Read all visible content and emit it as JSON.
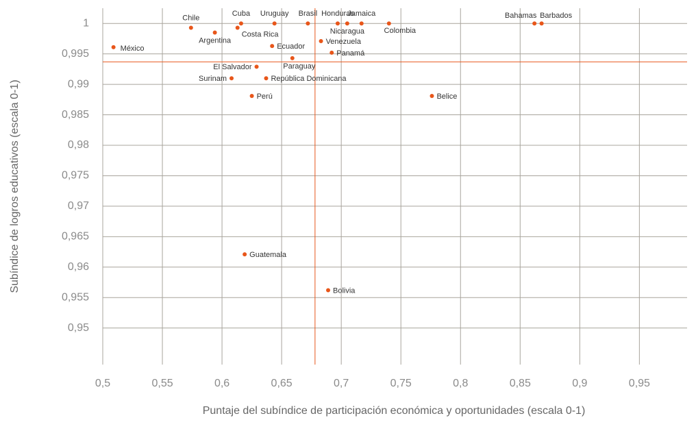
{
  "chart_data": {
    "type": "scatter",
    "x_label": "Puntaje del subíndice de participación económica y oportunidades (escala 0-1)",
    "y_label": "Subíndice de logros educativos (escala 0-1)",
    "labels": [
      "Chile",
      "Cuba",
      "Argentina",
      "Costa Rica",
      "México",
      "Uruguay",
      "Brasil",
      "Honduras",
      "Nicaragua",
      "Jamaica",
      "Colombia",
      "Venezuela",
      "Ecuador",
      "Panamá",
      "Paraguay",
      "El Salvador",
      "Surinam",
      "República Dominicana",
      "Perú",
      "Belice",
      "Bahamas",
      "Barbados",
      "Guatemala",
      "Bolivia"
    ],
    "x": [
      0.574,
      0.616,
      0.594,
      0.613,
      0.509,
      0.644,
      0.672,
      0.697,
      0.705,
      0.717,
      0.74,
      0.683,
      0.642,
      0.692,
      0.659,
      0.629,
      0.608,
      0.637,
      0.625,
      0.776,
      0.862,
      0.868,
      0.619,
      0.689
    ],
    "values": [
      0.9993,
      1.0,
      0.9985,
      0.9993,
      0.9961,
      1.0,
      1.0,
      1.0,
      1.0,
      1.0,
      1.0,
      0.9971,
      0.9963,
      0.9952,
      0.9943,
      0.9929,
      0.991,
      0.991,
      0.9881,
      0.9881,
      1.0,
      1.0,
      0.9621,
      0.9562
    ],
    "color": "#e8561a",
    "ref_x": 0.678,
    "ref_y": 0.9937,
    "xlim": [
      0.5,
      0.99
    ],
    "ylim": [
      0.944,
      1.0025
    ],
    "xticks": [
      {
        "value": 0.5,
        "label": "0,5"
      },
      {
        "value": 0.55,
        "label": "0,55"
      },
      {
        "value": 0.6,
        "label": "0,6"
      },
      {
        "value": 0.65,
        "label": "0,65"
      },
      {
        "value": 0.7,
        "label": "0,7"
      },
      {
        "value": 0.75,
        "label": "0,75"
      },
      {
        "value": 0.8,
        "label": "0,8"
      },
      {
        "value": 0.85,
        "label": "0,85"
      },
      {
        "value": 0.9,
        "label": "0,9"
      },
      {
        "value": 0.95,
        "label": "0,95"
      }
    ],
    "yticks": [
      1,
      {
        "value": 0.995,
        "label": "0,995"
      },
      {
        "value": 0.99,
        "label": "0,99"
      },
      {
        "value": 0.985,
        "label": "0,985"
      },
      {
        "value": 0.98,
        "label": "0,98"
      },
      {
        "value": 0.975,
        "label": "0,975"
      },
      {
        "value": 0.97,
        "label": "0,97"
      },
      {
        "value": 0.965,
        "label": "0,965"
      },
      {
        "value": 0.96,
        "label": "0,96"
      },
      {
        "value": 0.955,
        "label": "0,955"
      },
      {
        "value": 0.95,
        "label": "0,95"
      }
    ],
    "grid": true
  }
}
